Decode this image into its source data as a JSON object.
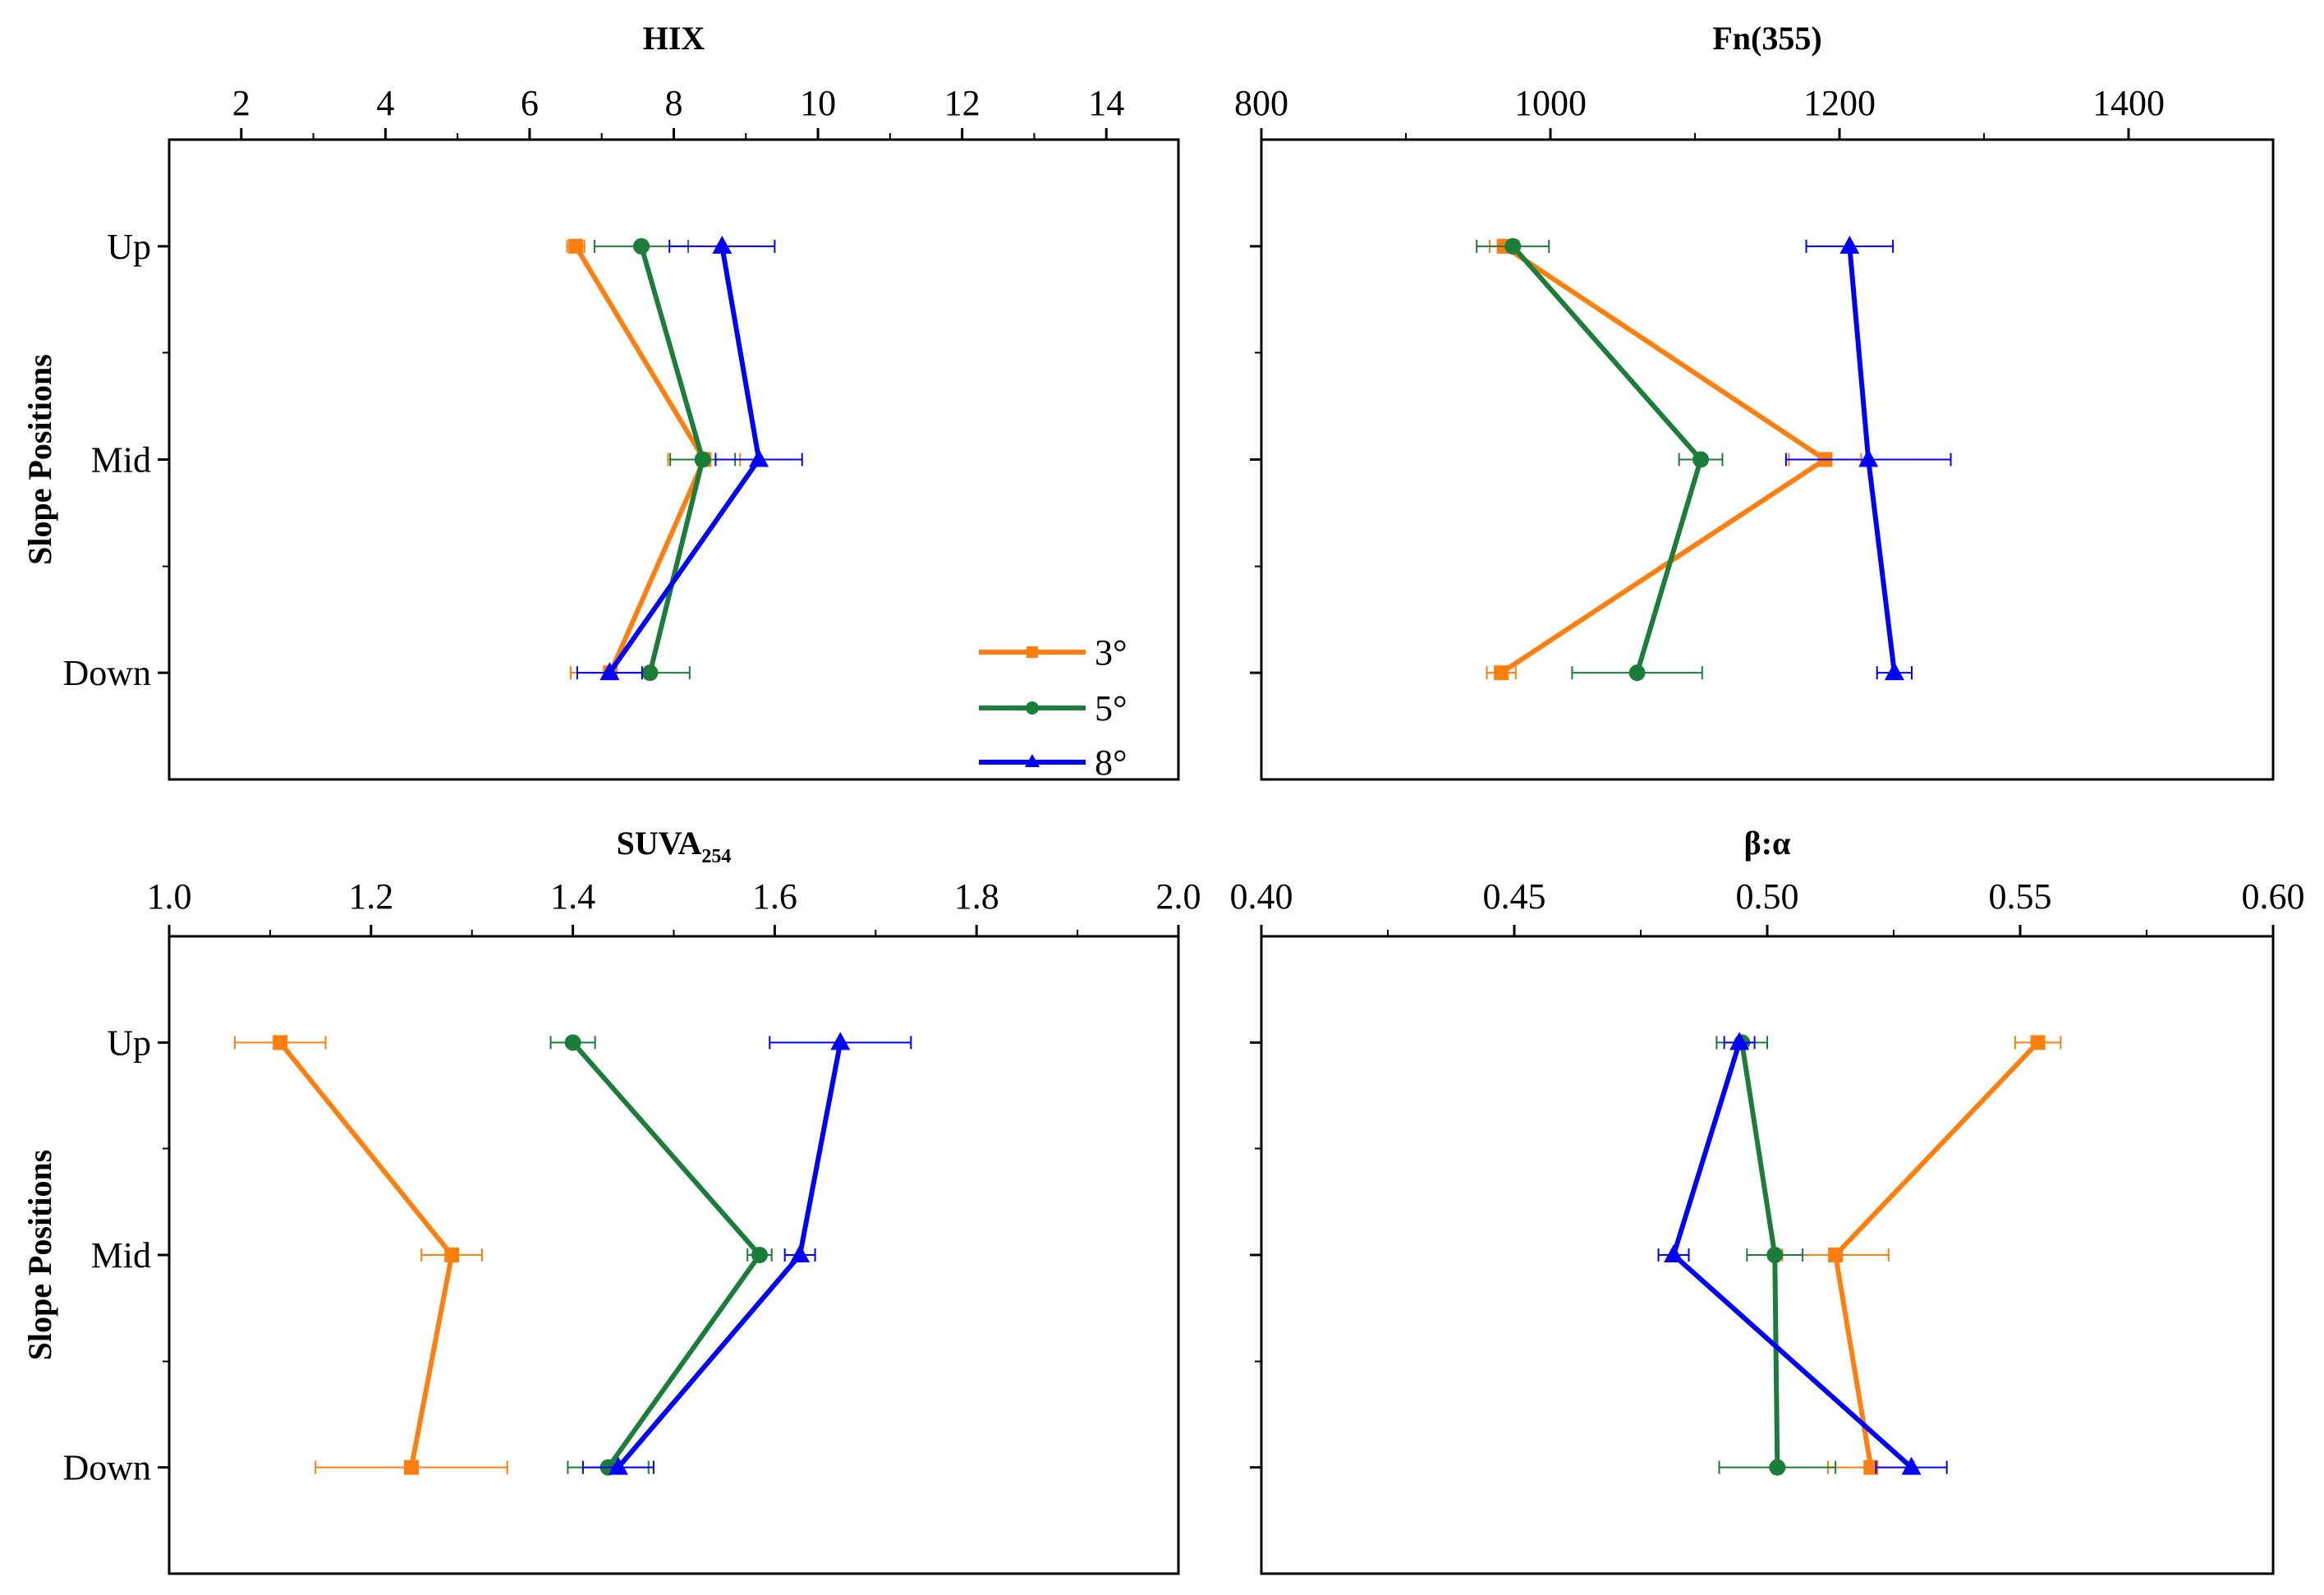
{
  "figure": {
    "ylabel": "Slope Positions",
    "legend": {
      "placement": "bottom-right of first panel",
      "entries": [
        {
          "label": "3°",
          "color": "#ff7f0e",
          "marker": "square"
        },
        {
          "label": "5°",
          "color": "#1a7d3a",
          "marker": "circle"
        },
        {
          "label": "8°",
          "color": "#0000ff",
          "marker": "triangle"
        }
      ]
    }
  },
  "chart_data": [
    {
      "type": "line",
      "orientation": "horizontal-values",
      "title": "HIX",
      "title_sub": "",
      "xlim": [
        1,
        15
      ],
      "x_ticks": [
        2,
        4,
        6,
        8,
        10,
        12,
        14
      ],
      "x_tick_labels": [
        "2",
        "4",
        "6",
        "8",
        "10",
        "12",
        "14"
      ],
      "categories": [
        "Up",
        "Mid",
        "Down"
      ],
      "series": [
        {
          "name": "3°",
          "color": "#ff7f0e",
          "marker": "square",
          "values": [
            6.64,
            8.42,
            7.12
          ],
          "errors": [
            0.12,
            0.5,
            0.55
          ]
        },
        {
          "name": "5°",
          "color": "#1a7d3a",
          "marker": "circle",
          "values": [
            7.55,
            8.4,
            7.67
          ],
          "errors": [
            0.65,
            0.45,
            0.55
          ]
        },
        {
          "name": "8°",
          "color": "#0000ff",
          "marker": "triangle",
          "values": [
            8.67,
            9.18,
            7.11
          ],
          "errors": [
            0.73,
            0.6,
            0.45
          ]
        }
      ]
    },
    {
      "type": "line",
      "orientation": "horizontal-values",
      "title": "Fn(355)",
      "title_sub": "",
      "xlim": [
        800,
        1500
      ],
      "x_ticks": [
        800,
        1000,
        1200,
        1400
      ],
      "x_tick_labels": [
        "800",
        "1000",
        "1200",
        "1400"
      ],
      "categories": [
        "Up",
        "Mid",
        "Down"
      ],
      "series": [
        {
          "name": "3°",
          "color": "#ff7f0e",
          "marker": "square",
          "values": [
            968,
            1190,
            966
          ],
          "errors": [
            10,
            25,
            10
          ]
        },
        {
          "name": "5°",
          "color": "#1a7d3a",
          "marker": "circle",
          "values": [
            974,
            1104,
            1060
          ],
          "errors": [
            25,
            15,
            45
          ]
        },
        {
          "name": "8°",
          "color": "#0000ff",
          "marker": "triangle",
          "values": [
            1207,
            1220,
            1238
          ],
          "errors": [
            30,
            57,
            12
          ]
        }
      ]
    },
    {
      "type": "line",
      "orientation": "horizontal-values",
      "title": "SUVA",
      "title_sub": "254",
      "xlim": [
        1.0,
        2.0
      ],
      "x_ticks": [
        1.0,
        1.2,
        1.4,
        1.6,
        1.8,
        2.0
      ],
      "x_tick_labels": [
        "1.0",
        "1.2",
        "1.4",
        "1.6",
        "1.8",
        "2.0"
      ],
      "categories": [
        "Up",
        "Mid",
        "Down"
      ],
      "series": [
        {
          "name": "3°",
          "color": "#ff7f0e",
          "marker": "square",
          "values": [
            1.11,
            1.28,
            1.24
          ],
          "errors": [
            0.045,
            0.03,
            0.095
          ]
        },
        {
          "name": "5°",
          "color": "#1a7d3a",
          "marker": "circle",
          "values": [
            1.4,
            1.585,
            1.435
          ],
          "errors": [
            0.022,
            0.012,
            0.04
          ]
        },
        {
          "name": "8°",
          "color": "#0000ff",
          "marker": "triangle",
          "values": [
            1.665,
            1.625,
            1.445
          ],
          "errors": [
            0.07,
            0.015,
            0.035
          ]
        }
      ]
    },
    {
      "type": "line",
      "orientation": "horizontal-values",
      "title": "β:α",
      "title_sub": "",
      "xlim": [
        0.4,
        0.6
      ],
      "x_ticks": [
        0.4,
        0.45,
        0.5,
        0.55,
        0.6
      ],
      "x_tick_labels": [
        "0.40",
        "0.45",
        "0.50",
        "0.55",
        "0.60"
      ],
      "categories": [
        "Up",
        "Mid",
        "Down"
      ],
      "series": [
        {
          "name": "3°",
          "color": "#ff7f0e",
          "marker": "square",
          "values": [
            0.5535,
            0.5135,
            0.5205
          ],
          "errors": [
            0.0045,
            0.0105,
            0.0085
          ]
        },
        {
          "name": "5°",
          "color": "#1a7d3a",
          "marker": "circle",
          "values": [
            0.495,
            0.5015,
            0.502
          ],
          "errors": [
            0.005,
            0.0055,
            0.0115
          ]
        },
        {
          "name": "8°",
          "color": "#0000ff",
          "marker": "triangle",
          "values": [
            0.4945,
            0.4815,
            0.5285
          ],
          "errors": [
            0.003,
            0.003,
            0.007
          ]
        }
      ]
    }
  ]
}
